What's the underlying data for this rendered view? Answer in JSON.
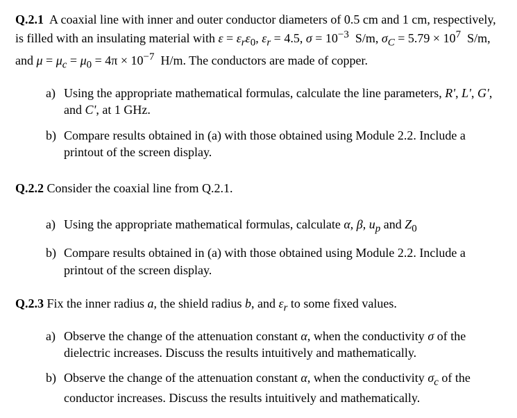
{
  "q1": {
    "label": "Q.2.1",
    "intro_html": "A coaxial line with inner and outer conductor diameters of 0.5 cm and 1 cm, respectively, is filled with an insulating material with <i>ε</i> = <i>ε<sub>r</sub>ε</i><sub>0</sub>, <i>ε<sub>r</sub></i> = 4.5, <i>σ</i> = 10<sup>−3</sup>&nbsp; S/m, <i>σ<sub>C</sub></i> = 5.79 × 10<sup>7</sup>&nbsp; S/m, and <i>μ</i> = <i>μ<sub>c</sub></i> = <i>μ</i><sub>0</sub> = 4π × 10<sup>−7</sup>&nbsp; H/m. The conductors are made of copper.",
    "a_html": "Using the appropriate mathematical formulas, calculate the line parameters, <i>R'</i>, <i>L'</i>, <i>G'</i>, and <i>C'</i>, at 1 GHz.",
    "b_html": "Compare results obtained in (a) with those obtained using Module 2.2. Include a printout of the screen display."
  },
  "q2": {
    "label": "Q.2.2",
    "intro_html": "Consider the coaxial line from Q.2.1.",
    "a_html": "Using the appropriate mathematical formulas, calculate <i>α</i>, <i>β</i>, <i>u<sub>p</sub></i> and <i>Z</i><sub>0</sub>",
    "b_html": "Compare results obtained in (a) with those obtained using Module 2.2. Include a printout of the screen display."
  },
  "q3": {
    "label": "Q.2.3",
    "intro_html": "Fix the inner radius <i>a</i>, the shield radius <i>b</i>, and <i>ε<sub>r</sub></i> to some fixed values.",
    "a_html": "Observe the change of the attenuation constant <i>α</i>, when the conductivity <i>σ</i>  of the dielectric increases. Discuss the results intuitively and mathematically.",
    "b_html": "Observe the change of the attenuation constant <i>α</i>, when the conductivity <i>σ<sub>c</sub></i> of the conductor increases. Discuss the results intuitively and mathematically."
  },
  "labels": {
    "a": "a)",
    "b": "b)"
  }
}
